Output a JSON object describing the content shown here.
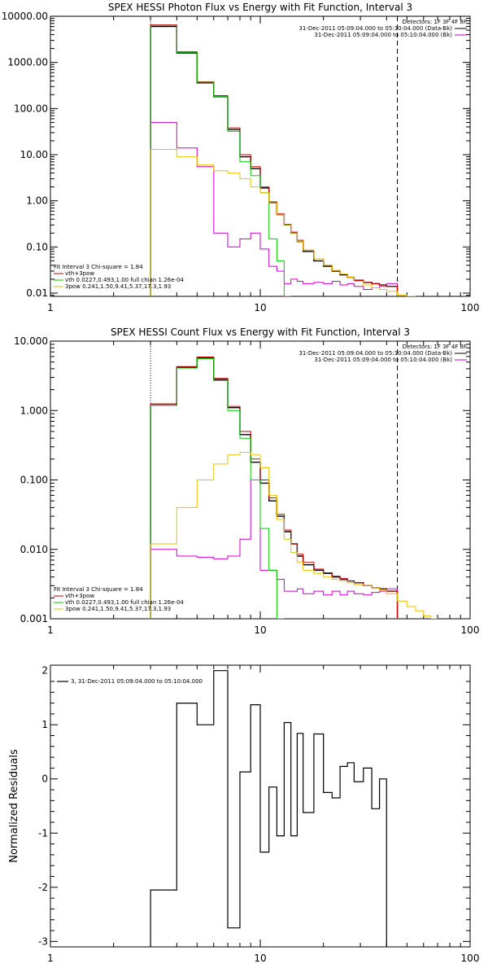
{
  "chart_data": [
    {
      "type": "line",
      "title": "SPEX HESSI Photon Flux vs Energy with Fit Function, Interval 3",
      "xscale": "log",
      "yscale": "log",
      "xlim": [
        1,
        100
      ],
      "ylim": [
        0.0085,
        10000
      ],
      "x_ticks": [
        "1",
        "10",
        "100"
      ],
      "y_ticks": [
        "10000.00",
        "1000.00",
        "100.00",
        "10.00",
        "1.00",
        "0.10",
        "0.01"
      ],
      "vlines": [
        {
          "x": 3,
          "style": "dotted",
          "color": "#000000"
        },
        {
          "x": 45,
          "style": "dashed",
          "color": "#000000"
        }
      ],
      "legend_top_right": {
        "header": "Detectors: 1F 3F 4F 8F",
        "items": [
          {
            "label": "31-Dec-2011 05:09:04.000 to 05:10:04.000 (Data-Bk)",
            "color": "#000000"
          },
          {
            "label": "31-Dec-2011 05:09:04.000 to 05:10:04.000 (Bk)",
            "color": "#cc00cc"
          }
        ]
      },
      "legend_bottom_left": {
        "header": "Fit Interval 3    Chi-square = 1.84",
        "items": [
          {
            "label": "vth+3pow",
            "color": "#cc0000"
          },
          {
            "label": "vth 0.0227,0.493,1.00  full chian 1.26e-04",
            "color": "#00cc00"
          },
          {
            "label": "3pow 0.241,1.50,9.41,5.37,17.3,1.93",
            "color": "#e6c000"
          }
        ]
      },
      "edges": [
        3,
        4,
        5,
        6,
        7,
        8,
        9,
        10,
        11,
        12,
        13,
        14,
        15,
        16,
        18,
        20,
        22,
        24,
        26,
        28,
        31,
        34,
        37,
        40,
        45,
        50,
        55
      ],
      "series": [
        {
          "name": "Data-Bk",
          "color": "#000000",
          "width": 1.4,
          "values": [
            6000,
            1600,
            360,
            180,
            35,
            9,
            5,
            1.9,
            0.9,
            0.5,
            0.3,
            0.2,
            0.13,
            0.08,
            0.05,
            0.038,
            0.03,
            0.025,
            0.022,
            0.019,
            0.017,
            0.016,
            0.015,
            0.014
          ]
        },
        {
          "name": "Bk",
          "color": "#cc00cc",
          "width": 1,
          "values": [
            50,
            14,
            5.5,
            0.2,
            0.1,
            0.15,
            0.2,
            0.09,
            0.038,
            0.03,
            0.016,
            0.02,
            0.018,
            0.016,
            0.017,
            0.016,
            0.018,
            0.015,
            0.016,
            0.014,
            0.012,
            0.013,
            0.014,
            0.016
          ]
        },
        {
          "name": "vth+3pow",
          "color": "#cc0000",
          "width": 1,
          "values": [
            6500,
            1700,
            380,
            190,
            38,
            10,
            5.5,
            2,
            0.95,
            0.52,
            0.31,
            0.21,
            0.14,
            0.085,
            0.055,
            0.04,
            0.031,
            0.026,
            0.022,
            0.019,
            0.017,
            0.016,
            0.015,
            0.014
          ]
        },
        {
          "name": "vth",
          "color": "#00cc00",
          "width": 1,
          "values": [
            6300,
            1650,
            370,
            180,
            32,
            7,
            3.5,
            1.5,
            0.15,
            0.05,
            0.008
          ]
        },
        {
          "name": "3pow",
          "color": "#e6c000",
          "width": 1,
          "values": [
            13,
            9,
            6,
            4.5,
            4,
            3,
            2,
            1.5,
            0.9,
            0.5,
            0.3,
            0.2,
            0.13,
            0.085,
            0.055,
            0.04,
            0.031,
            0.026,
            0.022,
            0.018,
            0.015,
            0.013,
            0.012,
            0.011,
            0.009,
            0.008
          ]
        }
      ]
    },
    {
      "type": "line",
      "title": "SPEX HESSI Count Flux vs Energy with Fit Function, Interval 3",
      "xscale": "log",
      "yscale": "log",
      "xlim": [
        1,
        100
      ],
      "ylim": [
        0.001,
        10
      ],
      "x_ticks": [
        "1",
        "10",
        "100"
      ],
      "y_ticks": [
        "10.000",
        "1.000",
        "0.100",
        "0.010",
        "0.001"
      ],
      "vlines": [
        {
          "x": 3,
          "style": "dotted",
          "color": "#000000"
        },
        {
          "x": 45,
          "style": "dashed",
          "color": "#000000"
        }
      ],
      "legend_top_right": {
        "header": "Detectors: 1F 3F 4F 8F",
        "items": [
          {
            "label": "31-Dec-2011 05:09:04.000 to 05:10:04.000 (Data-Bk)",
            "color": "#000000"
          },
          {
            "label": "31-Dec-2011 05:09:04.000 to 05:10:04.000 (Bk)",
            "color": "#cc00cc"
          }
        ]
      },
      "legend_bottom_left": {
        "header": "Fit Interval 3    Chi-square = 1.84",
        "items": [
          {
            "label": "vth+3pow",
            "color": "#cc0000"
          },
          {
            "label": "vth 0.0227,0.493,1.00  full chian 1.26e-04",
            "color": "#00cc00"
          },
          {
            "label": "3pow 0.241,1.50,9.41,5.37,17.3,1.93",
            "color": "#e6c000"
          }
        ]
      },
      "edges": [
        3,
        4,
        5,
        6,
        7,
        8,
        9,
        10,
        11,
        12,
        13,
        14,
        15,
        16,
        18,
        20,
        22,
        24,
        26,
        28,
        31,
        34,
        37,
        40,
        45,
        50,
        55,
        60,
        65,
        70
      ],
      "series": [
        {
          "name": "Data-Bk",
          "color": "#000000",
          "width": 1.4,
          "values": [
            1.2,
            4.2,
            5.7,
            2.8,
            1.1,
            0.45,
            0.18,
            0.09,
            0.05,
            0.03,
            0.018,
            0.012,
            0.008,
            0.006,
            0.005,
            0.0045,
            0.004,
            0.0037,
            0.0035,
            0.0033,
            0.003,
            0.0028,
            0.0027,
            0.0025
          ]
        },
        {
          "name": "Bk",
          "color": "#cc00cc",
          "width": 1,
          "values": [
            0.01,
            0.008,
            0.0077,
            0.0073,
            0.008,
            0.014,
            0.1,
            0.005,
            0.005,
            0.0037,
            0.0025,
            0.0025,
            0.0027,
            0.0023,
            0.0025,
            0.0022,
            0.0025,
            0.0022,
            0.0025,
            0.0023,
            0.0022,
            0.0024,
            0.0025,
            0.0027
          ]
        },
        {
          "name": "vth+3pow",
          "color": "#cc0000",
          "width": 1,
          "values": [
            1.25,
            4.3,
            5.9,
            2.9,
            1.15,
            0.5,
            0.2,
            0.1,
            0.055,
            0.032,
            0.019,
            0.012,
            0.0085,
            0.0065,
            0.0052,
            0.0046,
            0.0041,
            0.0038,
            0.0035,
            0.0033,
            0.003,
            0.0028,
            0.0027,
            0.0025
          ]
        },
        {
          "name": "vth",
          "color": "#00cc00",
          "width": 1,
          "values": [
            1.2,
            4.1,
            5.6,
            2.7,
            1.0,
            0.4,
            0.1,
            0.02,
            0.005,
            0.0009
          ]
        },
        {
          "name": "3pow",
          "color": "#e6c000",
          "width": 1,
          "values": [
            0.012,
            0.04,
            0.1,
            0.17,
            0.23,
            0.25,
            0.23,
            0.15,
            0.06,
            0.027,
            0.014,
            0.009,
            0.0065,
            0.005,
            0.0045,
            0.004,
            0.0037,
            0.0035,
            0.0033,
            0.0031,
            0.003,
            0.0028,
            0.0026,
            0.0023,
            0.0018,
            0.0015,
            0.0013,
            0.0011,
            0.001
          ]
        }
      ]
    },
    {
      "type": "line",
      "title": "",
      "xscale": "log",
      "yscale": "linear",
      "xlim": [
        1,
        100
      ],
      "ylim": [
        -3.1,
        2.1
      ],
      "x_ticks": [
        "1",
        "10",
        "100"
      ],
      "y_ticks": [
        "2",
        "1",
        "0",
        "-1",
        "-2",
        "-3"
      ],
      "ylabel": "Normalized Residuals",
      "legend": {
        "items": [
          {
            "label": "3, 31-Dec-2011 05:09:04.000 to 05:10:04.000",
            "color": "#000000"
          }
        ]
      },
      "edges": [
        3,
        4,
        5,
        6,
        7,
        8,
        9,
        10,
        11,
        12,
        13,
        14,
        15,
        16,
        18,
        20,
        22,
        24,
        26,
        28,
        31,
        34,
        37,
        40,
        45
      ],
      "series": [
        {
          "name": "3, 31-Dec-2011 05:09:04.000 to 05:10:04.000",
          "color": "#000000",
          "width": 1.2,
          "values": [
            -2.05,
            1.4,
            1.0,
            2.0,
            -2.75,
            0.13,
            1.37,
            -1.35,
            -0.15,
            -1.05,
            1.04,
            -1.05,
            0.84,
            -0.62,
            0.83,
            -0.25,
            -0.35,
            0.23,
            0.3,
            -0.05,
            0.2,
            -0.55,
            0.0
          ]
        }
      ]
    }
  ]
}
